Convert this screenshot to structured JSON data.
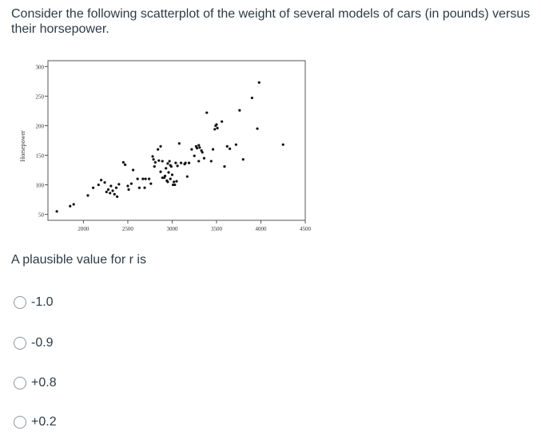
{
  "question": {
    "text": "Consider the following scatterplot of the weight of several models of cars (in pounds) versus their horsepower.",
    "prompt": "A plausible value for r is"
  },
  "options": [
    {
      "label": "-1.0",
      "selected": false
    },
    {
      "label": "-0.9",
      "selected": false
    },
    {
      "label": "+0.8",
      "selected": false
    },
    {
      "label": "+0.2",
      "selected": false
    }
  ],
  "chart_data": {
    "type": "scatter",
    "title": "",
    "xlabel": "",
    "ylabel": "Horsepower",
    "xlim": [
      1600,
      4500
    ],
    "ylim": [
      40,
      310
    ],
    "xticks": [
      2000,
      2500,
      3000,
      3500,
      4000,
      4500
    ],
    "yticks": [
      50,
      100,
      150,
      200,
      250,
      300
    ],
    "grid": false,
    "points": [
      [
        1700,
        55
      ],
      [
        1850,
        64
      ],
      [
        1890,
        67
      ],
      [
        2050,
        82
      ],
      [
        2110,
        95
      ],
      [
        2170,
        100
      ],
      [
        2200,
        108
      ],
      [
        2240,
        104
      ],
      [
        2260,
        88
      ],
      [
        2280,
        92
      ],
      [
        2300,
        86
      ],
      [
        2310,
        98
      ],
      [
        2330,
        90
      ],
      [
        2350,
        84
      ],
      [
        2370,
        95
      ],
      [
        2380,
        80
      ],
      [
        2400,
        101
      ],
      [
        2450,
        138
      ],
      [
        2470,
        134
      ],
      [
        2500,
        98
      ],
      [
        2510,
        92
      ],
      [
        2540,
        102
      ],
      [
        2560,
        125
      ],
      [
        2610,
        110
      ],
      [
        2630,
        95
      ],
      [
        2670,
        110
      ],
      [
        2690,
        95
      ],
      [
        2700,
        110
      ],
      [
        2740,
        110
      ],
      [
        2760,
        102
      ],
      [
        2780,
        148
      ],
      [
        2800,
        131
      ],
      [
        2790,
        143
      ],
      [
        2810,
        138
      ],
      [
        2850,
        141
      ],
      [
        2840,
        160
      ],
      [
        2870,
        165
      ],
      [
        2870,
        122
      ],
      [
        2890,
        140
      ],
      [
        2890,
        112
      ],
      [
        2910,
        112
      ],
      [
        2920,
        115
      ],
      [
        2930,
        128
      ],
      [
        2940,
        107
      ],
      [
        2950,
        136
      ],
      [
        2950,
        105
      ],
      [
        2960,
        121
      ],
      [
        2970,
        140
      ],
      [
        2980,
        110
      ],
      [
        2980,
        133
      ],
      [
        2990,
        131
      ],
      [
        3000,
        117
      ],
      [
        3010,
        100
      ],
      [
        3020,
        105
      ],
      [
        3030,
        100
      ],
      [
        3040,
        137
      ],
      [
        3050,
        106
      ],
      [
        3060,
        132
      ],
      [
        3080,
        170
      ],
      [
        3100,
        137
      ],
      [
        3140,
        135
      ],
      [
        3150,
        137
      ],
      [
        3170,
        114
      ],
      [
        3190,
        137
      ],
      [
        3220,
        160
      ],
      [
        3250,
        149
      ],
      [
        3270,
        165
      ],
      [
        3280,
        162
      ],
      [
        3300,
        167
      ],
      [
        3310,
        163
      ],
      [
        3300,
        140
      ],
      [
        3330,
        158
      ],
      [
        3340,
        155
      ],
      [
        3360,
        145
      ],
      [
        3390,
        222
      ],
      [
        3440,
        140
      ],
      [
        3460,
        160
      ],
      [
        3480,
        194
      ],
      [
        3490,
        200
      ],
      [
        3500,
        202
      ],
      [
        3510,
        196
      ],
      [
        3560,
        207
      ],
      [
        3590,
        131
      ],
      [
        3620,
        165
      ],
      [
        3650,
        161
      ],
      [
        3720,
        168
      ],
      [
        3760,
        226
      ],
      [
        3800,
        143
      ],
      [
        3900,
        247
      ],
      [
        3960,
        195
      ],
      [
        3980,
        273
      ],
      [
        4250,
        168
      ]
    ]
  }
}
